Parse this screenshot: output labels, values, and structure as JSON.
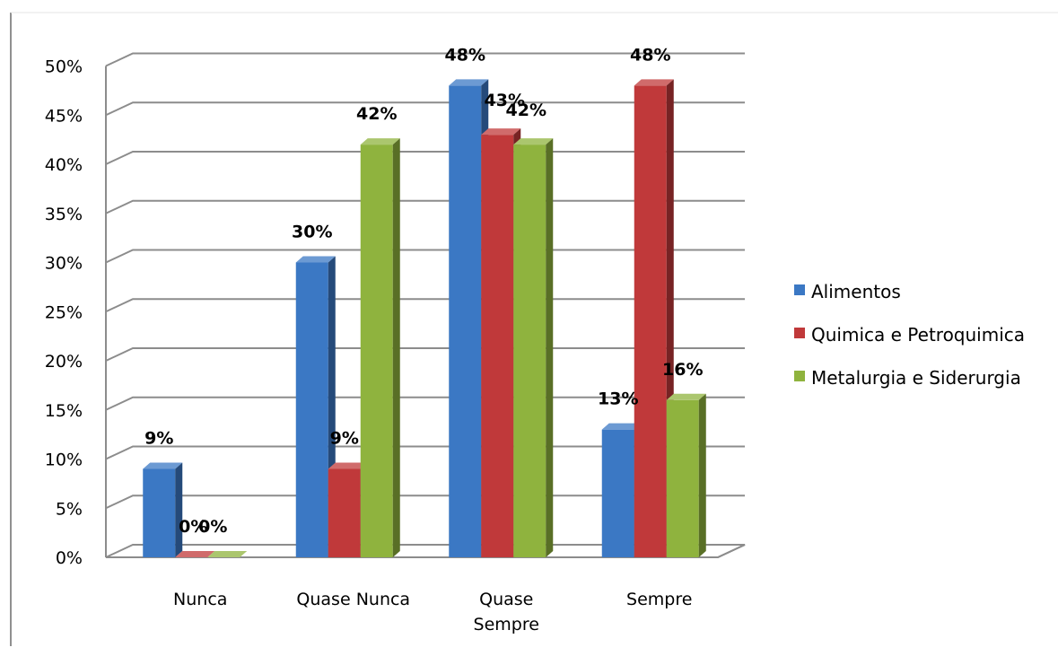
{
  "chart_data": {
    "type": "bar",
    "style": "3d-clustered-column",
    "categories": [
      {
        "lines": [
          "Nunca"
        ]
      },
      {
        "lines": [
          "Quase Nunca"
        ]
      },
      {
        "lines": [
          "Quase",
          "Sempre"
        ]
      },
      {
        "lines": [
          "Sempre"
        ]
      }
    ],
    "series": [
      {
        "name": "Alimentos",
        "color": "#3B78C4",
        "values": [
          9,
          30,
          48,
          13
        ],
        "labels": [
          "9%",
          "30%",
          "48%",
          "13%"
        ]
      },
      {
        "name": "Quimica e Petroquimica",
        "color": "#C0393A",
        "values": [
          0,
          9,
          43,
          48
        ],
        "labels": [
          "0%",
          "9%",
          "43%",
          "48%"
        ]
      },
      {
        "name": "Metalurgia e Siderurgia",
        "color": "#8FB33E",
        "values": [
          0,
          42,
          42,
          16
        ],
        "labels": [
          "0%",
          "42%",
          "42%",
          "16%"
        ]
      }
    ],
    "y_ticks": [
      "0%",
      "5%",
      "10%",
      "15%",
      "20%",
      "25%",
      "30%",
      "35%",
      "40%",
      "45%",
      "50%"
    ],
    "ylim": [
      0,
      50
    ],
    "grid": true,
    "legend_position": "right"
  }
}
